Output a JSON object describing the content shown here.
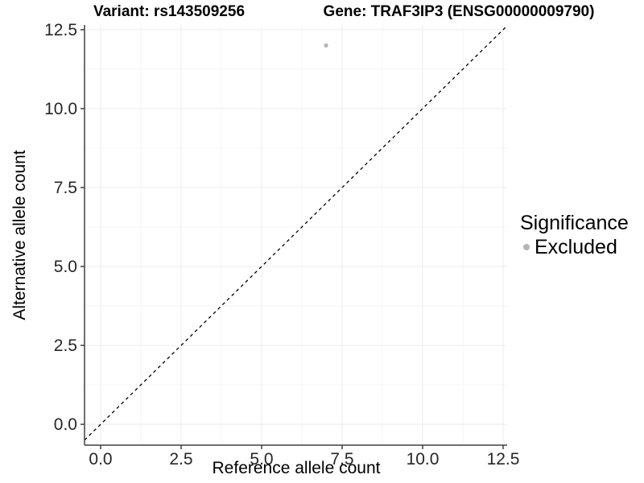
{
  "chart_data": {
    "type": "scatter",
    "titles": {
      "left": "Variant: rs143509256",
      "right": "Gene: TRAF3IP3 (ENSG00000009790)"
    },
    "xlabel": "Reference allele count",
    "ylabel": "Alternative allele count",
    "xlim": [
      -0.5,
      12.625
    ],
    "ylim": [
      -0.66,
      12.65
    ],
    "xticks": {
      "values": [
        0,
        2.5,
        5,
        7.5,
        10,
        12.5
      ],
      "labels": [
        "0.0",
        "2.5",
        "5.0",
        "7.5",
        "10.0",
        "12.5"
      ]
    },
    "yticks": {
      "values": [
        0,
        2.5,
        5,
        7.5,
        10,
        12.5
      ],
      "labels": [
        "0.0",
        "2.5",
        "5.0",
        "7.5",
        "10.0",
        "12.5"
      ]
    },
    "grid": {
      "major": true,
      "minor": true
    },
    "reference_line": {
      "kind": "abline",
      "slope": 1,
      "intercept": 0,
      "dashed": true,
      "color": "#000000"
    },
    "series": [
      {
        "name": "Excluded",
        "color": "#b5b5b5",
        "points": [
          {
            "x": 7,
            "y": 12
          }
        ]
      }
    ],
    "legend": {
      "title": "Significance",
      "position": "right",
      "items": [
        {
          "label": "Excluded",
          "color": "#b5b5b5",
          "marker": "circle"
        }
      ]
    },
    "colors": {
      "axis_line": "#404040",
      "tick_mark": "#404040",
      "grid_major": "#ececec",
      "grid_minor": "#f6f6f6",
      "tick_text": "#262626",
      "panel_background": "#ffffff"
    }
  }
}
